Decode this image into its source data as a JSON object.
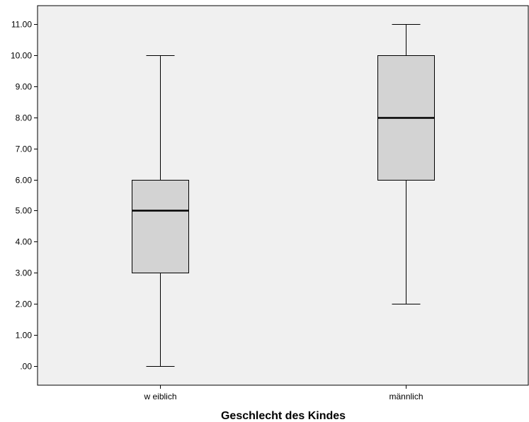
{
  "chart_data": {
    "type": "boxplot",
    "xlabel": "Geschlecht des Kindes",
    "ylabel": "",
    "ylim": [
      -0.62,
      11.6
    ],
    "yticks": [
      0,
      1,
      2,
      3,
      4,
      5,
      6,
      7,
      8,
      9,
      10,
      11
    ],
    "ytick_labels": [
      ".00",
      "1.00",
      "2.00",
      "3.00",
      "4.00",
      "5.00",
      "6.00",
      "7.00",
      "8.00",
      "9.00",
      "10.00",
      "11.00"
    ],
    "categories": [
      "w eiblich",
      "männlich"
    ],
    "boxes": [
      {
        "category": "w eiblich",
        "min": 0,
        "q1": 3,
        "median": 5,
        "q3": 6,
        "max": 10
      },
      {
        "category": "männlich",
        "min": 2,
        "q1": 6,
        "median": 8,
        "q3": 10,
        "max": 11
      }
    ],
    "grid": false,
    "colors": {
      "plot_background": "#f0f0f0",
      "box_fill": "#d3d3d3",
      "stroke": "#000000"
    }
  }
}
